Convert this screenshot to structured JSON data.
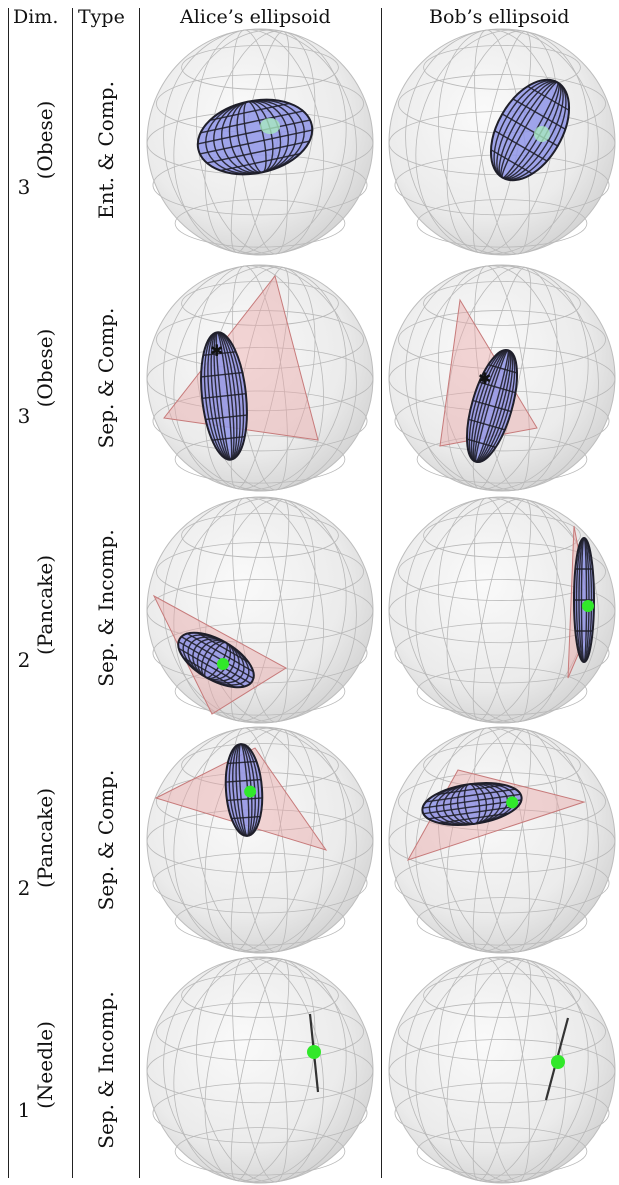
{
  "headers": {
    "dim": "Dim.",
    "type": "Type",
    "alice": "Alice’s ellipsoid",
    "bob": "Bob’s ellipsoid"
  },
  "rows": [
    {
      "dim": "3",
      "shape": "(Obese)",
      "type": "Ent. & Comp."
    },
    {
      "dim": "3",
      "shape": "(Obese)",
      "type": "Sep. & Comp."
    },
    {
      "dim": "2",
      "shape": "(Pancake)",
      "type": "Sep. & Incomp."
    },
    {
      "dim": "2",
      "shape": "(Pancake)",
      "type": "Sep. & Comp."
    },
    {
      "dim": "1",
      "shape": "(Needle)",
      "type": "Sep. & Incomp."
    }
  ],
  "colors": {
    "sphere_fill": "#ebebeb",
    "grid": "#b9b9b9",
    "ellipsoid": "#8f95e8",
    "wire": "#1f1f2a",
    "simplex": "#e9a6a6",
    "dot": "#31e82a"
  }
}
